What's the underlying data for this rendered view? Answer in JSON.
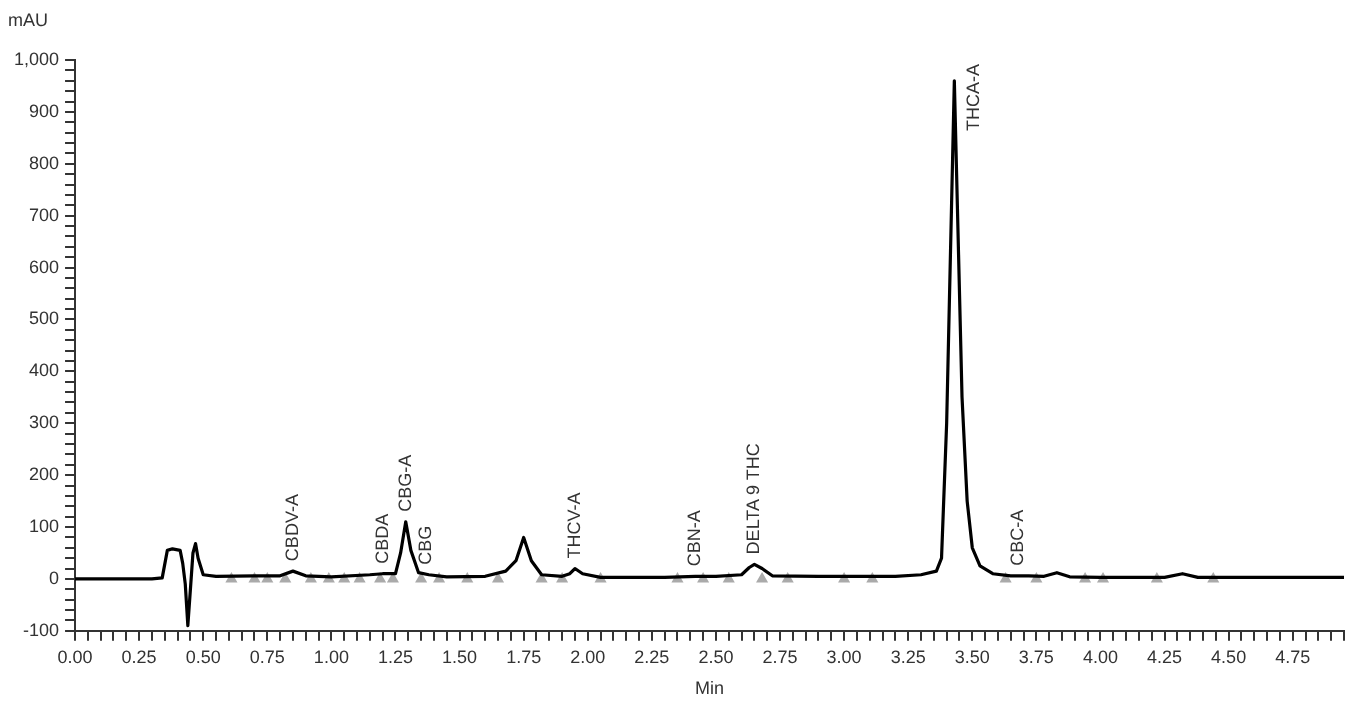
{
  "chart_data": {
    "type": "line",
    "xlabel": "Min",
    "ylabel": "mAU",
    "grid": false,
    "legend": false,
    "marker": "none",
    "line_style": "solid",
    "xlim": [
      0,
      4.95
    ],
    "ylim": [
      -100,
      1000
    ],
    "xticks": [
      {
        "value": 0,
        "label": "0.00"
      },
      {
        "value": 0.05,
        "label": null
      },
      {
        "value": 0.1,
        "label": null
      },
      {
        "value": 0.15,
        "label": null
      },
      {
        "value": 0.2,
        "label": null
      },
      {
        "value": 0.25,
        "label": "0.25"
      },
      {
        "value": 0.3,
        "label": null
      },
      {
        "value": 0.35,
        "label": null
      },
      {
        "value": 0.4,
        "label": null
      },
      {
        "value": 0.45,
        "label": null
      },
      {
        "value": 0.5,
        "label": "0.50"
      },
      {
        "value": 0.55,
        "label": null
      },
      {
        "value": 0.6,
        "label": null
      },
      {
        "value": 0.65,
        "label": null
      },
      {
        "value": 0.7,
        "label": null
      },
      {
        "value": 0.75,
        "label": "0.75"
      },
      {
        "value": 0.8,
        "label": null
      },
      {
        "value": 0.85,
        "label": null
      },
      {
        "value": 0.9,
        "label": null
      },
      {
        "value": 0.95,
        "label": null
      },
      {
        "value": 1,
        "label": "1.00"
      },
      {
        "value": 1.05,
        "label": null
      },
      {
        "value": 1.1,
        "label": null
      },
      {
        "value": 1.15,
        "label": null
      },
      {
        "value": 1.2,
        "label": null
      },
      {
        "value": 1.25,
        "label": "1.25"
      },
      {
        "value": 1.3,
        "label": null
      },
      {
        "value": 1.35,
        "label": null
      },
      {
        "value": 1.4,
        "label": null
      },
      {
        "value": 1.45,
        "label": null
      },
      {
        "value": 1.5,
        "label": "1.50"
      },
      {
        "value": 1.55,
        "label": null
      },
      {
        "value": 1.6,
        "label": null
      },
      {
        "value": 1.65,
        "label": null
      },
      {
        "value": 1.7,
        "label": null
      },
      {
        "value": 1.75,
        "label": "1.75"
      },
      {
        "value": 1.8,
        "label": null
      },
      {
        "value": 1.85,
        "label": null
      },
      {
        "value": 1.9,
        "label": null
      },
      {
        "value": 1.95,
        "label": null
      },
      {
        "value": 2,
        "label": "2.00"
      },
      {
        "value": 2.05,
        "label": null
      },
      {
        "value": 2.1,
        "label": null
      },
      {
        "value": 2.15,
        "label": null
      },
      {
        "value": 2.2,
        "label": null
      },
      {
        "value": 2.25,
        "label": "2.25"
      },
      {
        "value": 2.3,
        "label": null
      },
      {
        "value": 2.35,
        "label": null
      },
      {
        "value": 2.4,
        "label": null
      },
      {
        "value": 2.45,
        "label": null
      },
      {
        "value": 2.5,
        "label": "2.50"
      },
      {
        "value": 2.55,
        "label": null
      },
      {
        "value": 2.6,
        "label": null
      },
      {
        "value": 2.65,
        "label": null
      },
      {
        "value": 2.7,
        "label": null
      },
      {
        "value": 2.75,
        "label": "2.75"
      },
      {
        "value": 2.8,
        "label": null
      },
      {
        "value": 2.85,
        "label": null
      },
      {
        "value": 2.9,
        "label": null
      },
      {
        "value": 2.95,
        "label": null
      },
      {
        "value": 3,
        "label": "3.00"
      },
      {
        "value": 3.05,
        "label": null
      },
      {
        "value": 3.1,
        "label": null
      },
      {
        "value": 3.15,
        "label": null
      },
      {
        "value": 3.2,
        "label": null
      },
      {
        "value": 3.25,
        "label": "3.25"
      },
      {
        "value": 3.3,
        "label": null
      },
      {
        "value": 3.35,
        "label": null
      },
      {
        "value": 3.4,
        "label": null
      },
      {
        "value": 3.45,
        "label": null
      },
      {
        "value": 3.5,
        "label": "3.50"
      },
      {
        "value": 3.55,
        "label": null
      },
      {
        "value": 3.6,
        "label": null
      },
      {
        "value": 3.65,
        "label": null
      },
      {
        "value": 3.7,
        "label": null
      },
      {
        "value": 3.75,
        "label": "3.75"
      },
      {
        "value": 3.8,
        "label": null
      },
      {
        "value": 3.85,
        "label": null
      },
      {
        "value": 3.9,
        "label": null
      },
      {
        "value": 3.95,
        "label": null
      },
      {
        "value": 4,
        "label": "4.00"
      },
      {
        "value": 4.05,
        "label": null
      },
      {
        "value": 4.1,
        "label": null
      },
      {
        "value": 4.15,
        "label": null
      },
      {
        "value": 4.2,
        "label": null
      },
      {
        "value": 4.25,
        "label": "4.25"
      },
      {
        "value": 4.3,
        "label": null
      },
      {
        "value": 4.35,
        "label": null
      },
      {
        "value": 4.4,
        "label": null
      },
      {
        "value": 4.45,
        "label": null
      },
      {
        "value": 4.5,
        "label": "4.50"
      },
      {
        "value": 4.55,
        "label": null
      },
      {
        "value": 4.6,
        "label": null
      },
      {
        "value": 4.65,
        "label": null
      },
      {
        "value": 4.7,
        "label": null
      },
      {
        "value": 4.75,
        "label": "4.75"
      },
      {
        "value": 4.8,
        "label": null
      },
      {
        "value": 4.85,
        "label": null
      },
      {
        "value": 4.9,
        "label": null
      },
      {
        "value": 4.95,
        "label": null
      }
    ],
    "yticks": [
      {
        "value": -100,
        "label": "-100"
      },
      {
        "value": -80,
        "label": null
      },
      {
        "value": -60,
        "label": null
      },
      {
        "value": -40,
        "label": null
      },
      {
        "value": -20,
        "label": null
      },
      {
        "value": 0,
        "label": "0"
      },
      {
        "value": 20,
        "label": null
      },
      {
        "value": 40,
        "label": null
      },
      {
        "value": 60,
        "label": null
      },
      {
        "value": 80,
        "label": null
      },
      {
        "value": 100,
        "label": "100"
      },
      {
        "value": 120,
        "label": null
      },
      {
        "value": 140,
        "label": null
      },
      {
        "value": 160,
        "label": null
      },
      {
        "value": 180,
        "label": null
      },
      {
        "value": 200,
        "label": "200"
      },
      {
        "value": 220,
        "label": null
      },
      {
        "value": 240,
        "label": null
      },
      {
        "value": 260,
        "label": null
      },
      {
        "value": 280,
        "label": null
      },
      {
        "value": 300,
        "label": "300"
      },
      {
        "value": 320,
        "label": null
      },
      {
        "value": 340,
        "label": null
      },
      {
        "value": 360,
        "label": null
      },
      {
        "value": 380,
        "label": null
      },
      {
        "value": 400,
        "label": "400"
      },
      {
        "value": 420,
        "label": null
      },
      {
        "value": 440,
        "label": null
      },
      {
        "value": 460,
        "label": null
      },
      {
        "value": 480,
        "label": null
      },
      {
        "value": 500,
        "label": "500"
      },
      {
        "value": 520,
        "label": null
      },
      {
        "value": 540,
        "label": null
      },
      {
        "value": 560,
        "label": null
      },
      {
        "value": 580,
        "label": null
      },
      {
        "value": 600,
        "label": "600"
      },
      {
        "value": 620,
        "label": null
      },
      {
        "value": 640,
        "label": null
      },
      {
        "value": 660,
        "label": null
      },
      {
        "value": 680,
        "label": null
      },
      {
        "value": 700,
        "label": "700"
      },
      {
        "value": 720,
        "label": null
      },
      {
        "value": 740,
        "label": null
      },
      {
        "value": 760,
        "label": null
      },
      {
        "value": 780,
        "label": null
      },
      {
        "value": 800,
        "label": "800"
      },
      {
        "value": 820,
        "label": null
      },
      {
        "value": 840,
        "label": null
      },
      {
        "value": 860,
        "label": null
      },
      {
        "value": 880,
        "label": null
      },
      {
        "value": 900,
        "label": "900"
      },
      {
        "value": 920,
        "label": null
      },
      {
        "value": 940,
        "label": null
      },
      {
        "value": 960,
        "label": null
      },
      {
        "value": 980,
        "label": null
      },
      {
        "value": 1000,
        "label": "1,000"
      }
    ],
    "series": [
      {
        "type": "line",
        "color": "#000000",
        "x": [
          0,
          0.3,
          0.34,
          0.36,
          0.38,
          0.41,
          0.42,
          0.43,
          0.44,
          0.45,
          0.46,
          0.47,
          0.48,
          0.5,
          0.55,
          0.7,
          0.8,
          0.85,
          0.9,
          1.0,
          1.15,
          1.2,
          1.25,
          1.27,
          1.29,
          1.31,
          1.34,
          1.38,
          1.45,
          1.6,
          1.68,
          1.72,
          1.75,
          1.78,
          1.82,
          1.9,
          1.93,
          1.95,
          1.98,
          2.05,
          2.3,
          2.42,
          2.5,
          2.6,
          2.63,
          2.65,
          2.68,
          2.72,
          2.9,
          3.2,
          3.3,
          3.36,
          3.38,
          3.4,
          3.43,
          3.46,
          3.48,
          3.5,
          3.53,
          3.58,
          3.65,
          3.72,
          3.78,
          3.83,
          3.88,
          4.0,
          4.25,
          4.32,
          4.38,
          4.5,
          4.95
        ],
        "values": [
          0,
          0,
          2,
          55,
          58,
          55,
          30,
          -10,
          -90,
          -20,
          50,
          68,
          40,
          8,
          5,
          6,
          6,
          15,
          6,
          4,
          8,
          10,
          10,
          50,
          110,
          55,
          12,
          8,
          4,
          5,
          15,
          35,
          80,
          35,
          8,
          5,
          10,
          20,
          10,
          3,
          3,
          5,
          5,
          8,
          22,
          28,
          20,
          6,
          5,
          5,
          8,
          15,
          40,
          300,
          960,
          350,
          150,
          60,
          25,
          10,
          6,
          6,
          5,
          12,
          4,
          3,
          3,
          10,
          3,
          3,
          3
        ]
      },
      {
        "type": "scatter",
        "color": "#aaaaaa",
        "marker": "triangle",
        "x": [
          0.61,
          0.7,
          0.75,
          0.82,
          0.92,
          0.99,
          1.05,
          1.11,
          1.19,
          1.24,
          1.35,
          1.42,
          1.53,
          1.65,
          1.82,
          1.9,
          2.05,
          2.35,
          2.45,
          2.55,
          2.68,
          2.78,
          3.0,
          3.11,
          3.63,
          3.75,
          3.94,
          4.01,
          4.22,
          4.44
        ],
        "values": [
          0,
          0,
          0,
          0,
          0,
          0,
          0,
          0,
          0,
          0,
          0,
          0,
          0,
          0,
          0,
          0,
          0,
          0,
          0,
          0,
          0,
          0,
          0,
          0,
          0,
          0,
          0,
          0,
          0,
          0
        ]
      }
    ],
    "annotations": [
      {
        "text": "CBDV-A",
        "x": 0.85,
        "y": 15
      },
      {
        "text": "CBDA",
        "x": 1.2,
        "y": 10
      },
      {
        "text": "CBG-A",
        "x": 1.29,
        "y": 110
      },
      {
        "text": "CBG",
        "x": 1.37,
        "y": 8
      },
      {
        "text": "THCV-A",
        "x": 1.95,
        "y": 20
      },
      {
        "text": "CBN-A",
        "x": 2.42,
        "y": 5
      },
      {
        "text": "DELTA 9 THC",
        "x": 2.65,
        "y": 28
      },
      {
        "text": "THCA-A",
        "x": 3.43,
        "y": 960
      },
      {
        "text": "CBC-A",
        "x": 3.68,
        "y": 6
      }
    ]
  }
}
